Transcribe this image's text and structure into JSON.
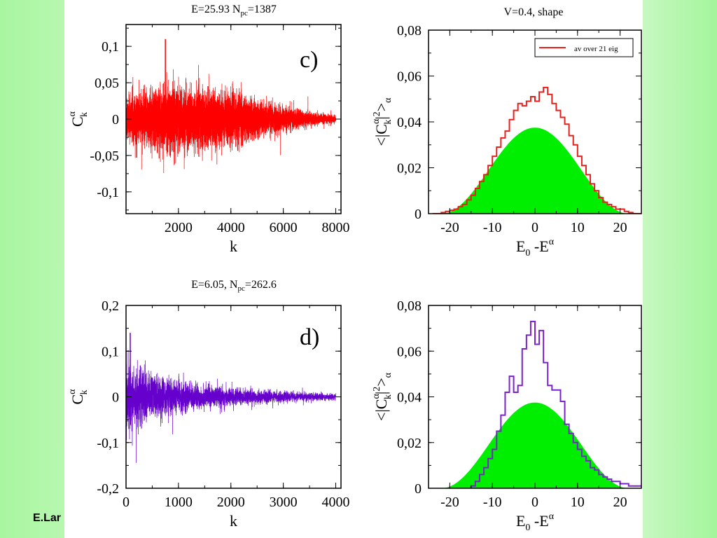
{
  "footer": {
    "author": "E.Lar"
  },
  "chart_data": [
    {
      "type": "line",
      "title": "E=25.93 N",
      "title_sub": "pc",
      "title_rest": "=1387",
      "panel_label": "c)",
      "xlabel": "k",
      "ylabel": "C",
      "ylabel_sup": "α",
      "ylabel_sub": "k",
      "xlim": [
        0,
        8200
      ],
      "ylim": [
        -0.13,
        0.13
      ],
      "xticks": [
        2000,
        4000,
        6000,
        8000
      ],
      "xtick_labels": [
        "2000",
        "4000",
        "6000",
        "8000"
      ],
      "yticks": [
        -0.1,
        -0.05,
        0,
        0.05,
        0.1
      ],
      "ytick_labels": [
        "-0,1",
        "-0,05",
        "0",
        "0,05",
        "0,1"
      ],
      "color": "#ff0000",
      "n_points": 8000,
      "envelope": {
        "k": [
          0,
          1000,
          2000,
          3000,
          4000,
          5000,
          6000,
          7000,
          8000
        ],
        "amplitude": [
          0.025,
          0.035,
          0.037,
          0.035,
          0.03,
          0.022,
          0.014,
          0.008,
          0.004
        ]
      },
      "spike": {
        "k": 1500,
        "value": 0.11
      }
    },
    {
      "type": "histogram",
      "title": "V=0.4, shape",
      "xlabel": "E",
      "xlabel_sub": "0",
      "xlabel_rest": " -E",
      "xlabel_sup": "α",
      "ylabel": "<|C",
      "ylabel_sup": "α",
      "ylabel_sub": "k",
      "ylabel_rest": "|",
      "ylabel_sup2": "2",
      "ylabel_end": ">",
      "ylabel_sub2": "α",
      "xlim": [
        -25,
        25
      ],
      "ylim": [
        0,
        0.08
      ],
      "xticks": [
        -20,
        -10,
        0,
        10,
        20
      ],
      "xtick_labels": [
        "-20",
        "-10",
        "0",
        "10",
        "20"
      ],
      "yticks": [
        0,
        0.02,
        0.04,
        0.06,
        0.08
      ],
      "ytick_labels": [
        "0",
        "0,02",
        "0,04",
        "0,06",
        "0,08"
      ],
      "legend": {
        "label": "av over 21 eig",
        "position": "top-right"
      },
      "shape_fill": {
        "color": "#00ee00",
        "peak": 0.0375,
        "center": 0,
        "halfwidth": 22
      },
      "series": [
        {
          "name": "av over 21 eig",
          "color": "#e8201c",
          "bin_width": 1,
          "x_start": -24,
          "values": [
            0,
            0,
            0.0005,
            0.001,
            0.0015,
            0.002,
            0.003,
            0.004,
            0.006,
            0.008,
            0.011,
            0.014,
            0.017,
            0.021,
            0.025,
            0.029,
            0.033,
            0.036,
            0.041,
            0.045,
            0.048,
            0.047,
            0.049,
            0.051,
            0.049,
            0.053,
            0.055,
            0.052,
            0.048,
            0.045,
            0.042,
            0.039,
            0.034,
            0.03,
            0.025,
            0.021,
            0.017,
            0.013,
            0.01,
            0.007,
            0.005,
            0.004,
            0.003,
            0.002,
            0.002,
            0.001,
            0.0005,
            0,
            0
          ]
        }
      ]
    },
    {
      "type": "line",
      "title": "E=6.05, N",
      "title_sub": "pc",
      "title_rest": "=262.6",
      "panel_label": "d)",
      "xlabel": "k",
      "ylabel": "C",
      "ylabel_sup": "α",
      "ylabel_sub": "k",
      "xlim": [
        0,
        4100
      ],
      "ylim": [
        -0.2,
        0.2
      ],
      "xticks": [
        0,
        1000,
        2000,
        3000,
        4000
      ],
      "xtick_labels": [
        "0",
        "1000",
        "2000",
        "3000",
        "4000"
      ],
      "yticks": [
        -0.2,
        -0.1,
        0,
        0.1,
        0.2
      ],
      "ytick_labels": [
        "-0,2",
        "-0,1",
        "0",
        "0,1",
        "0,2"
      ],
      "color": "#6600cc",
      "n_points": 4000,
      "envelope": {
        "k": [
          0,
          200,
          500,
          1000,
          1500,
          2000,
          2500,
          3000,
          3500,
          4000
        ],
        "amplitude": [
          0.07,
          0.06,
          0.045,
          0.03,
          0.022,
          0.017,
          0.013,
          0.01,
          0.008,
          0.006
        ]
      },
      "spike": {
        "k": 80,
        "value": 0.14
      }
    },
    {
      "type": "histogram",
      "xlabel": "E",
      "xlabel_sub": "0",
      "xlabel_rest": " -E",
      "xlabel_sup": "α",
      "ylabel": "<|C",
      "ylabel_sup": "α",
      "ylabel_sub": "k",
      "ylabel_rest": "|",
      "ylabel_sup2": "2",
      "ylabel_end": ">",
      "ylabel_sub2": "α",
      "xlim": [
        -25,
        25
      ],
      "ylim": [
        0,
        0.08
      ],
      "xticks": [
        -20,
        -10,
        0,
        10,
        20
      ],
      "xtick_labels": [
        "-20",
        "-10",
        "0",
        "10",
        "20"
      ],
      "yticks": [
        0,
        0.02,
        0.04,
        0.06,
        0.08
      ],
      "ytick_labels": [
        "0",
        "0,02",
        "0,04",
        "0,06",
        "0,08"
      ],
      "shape_fill": {
        "color": "#00ee00",
        "peak": 0.0375,
        "center": 0,
        "halfwidth": 22
      },
      "series": [
        {
          "color": "#7a22cc",
          "bin_width": 1,
          "x_start": -15,
          "values": [
            0.001,
            0.003,
            0.006,
            0.009,
            0.013,
            0.017,
            0.025,
            0.032,
            0.042,
            0.049,
            0.042,
            0.045,
            0.061,
            0.067,
            0.073,
            0.063,
            0.069,
            0.055,
            0.045,
            0.043,
            0.043,
            0.038,
            0.028,
            0.024,
            0.02,
            0.017,
            0.014,
            0.012,
            0.009,
            0.008,
            0.006,
            0.005,
            0.004,
            0.003,
            0.003,
            0.002,
            0.002,
            0.001,
            0.001,
            0.001
          ]
        }
      ]
    }
  ]
}
